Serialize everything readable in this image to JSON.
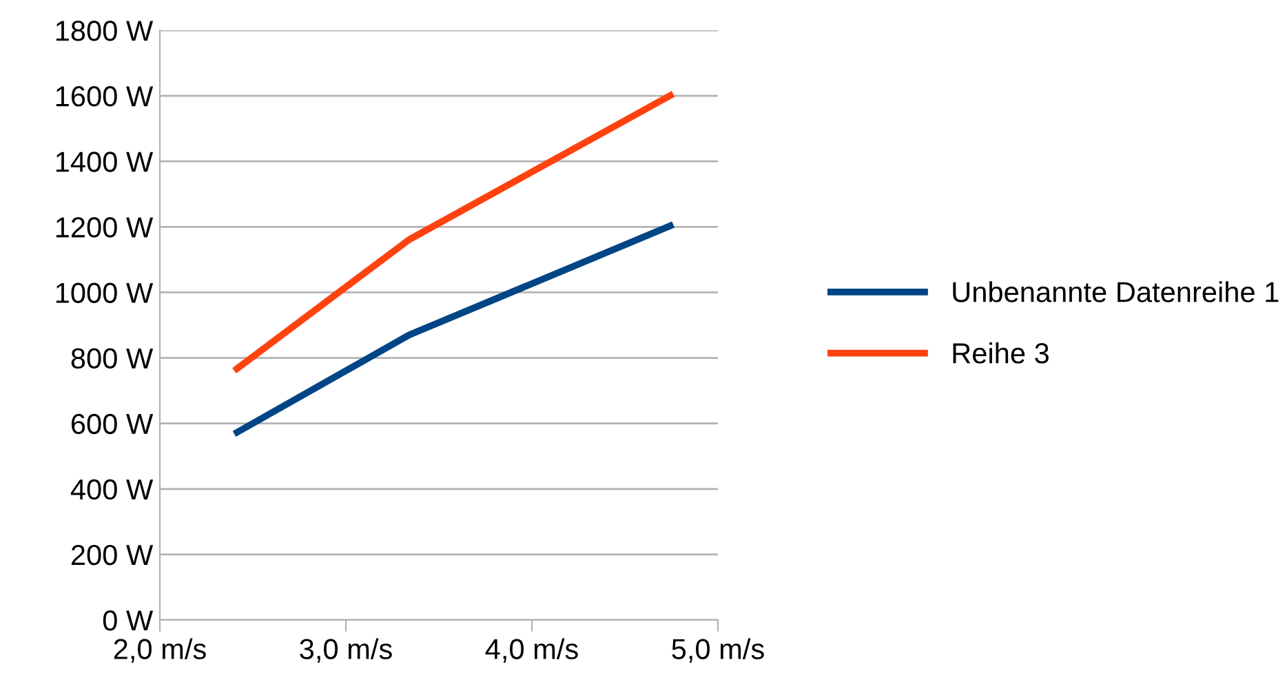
{
  "chart_data": {
    "type": "line",
    "series": [
      {
        "name": "Unbenannte Datenreihe 1",
        "color": "#004586",
        "x": [
          2.4,
          3.34,
          4.76
        ],
        "values": [
          568,
          870,
          1207
        ]
      },
      {
        "name": "Reihe 3",
        "color": "#ff420e",
        "x": [
          2.4,
          3.34,
          4.76
        ],
        "values": [
          761,
          1161,
          1606
        ]
      }
    ],
    "xlim": [
      2,
      5
    ],
    "xticks": [
      {
        "value": 2,
        "label": "2,0 m/s"
      },
      {
        "value": 3,
        "label": "3,0 m/s"
      },
      {
        "value": 4,
        "label": "4,0 m/s"
      },
      {
        "value": 5,
        "label": "5,0 m/s"
      }
    ],
    "ylim": [
      0,
      1800
    ],
    "yticks": [
      {
        "value": 0,
        "label": "0 W"
      },
      {
        "value": 200,
        "label": "200 W"
      },
      {
        "value": 400,
        "label": "400 W"
      },
      {
        "value": 600,
        "label": "600 W"
      },
      {
        "value": 800,
        "label": "800 W"
      },
      {
        "value": 1000,
        "label": "1000 W"
      },
      {
        "value": 1200,
        "label": "1200 W"
      },
      {
        "value": 1400,
        "label": "1400 W"
      },
      {
        "value": 1600,
        "label": "1600 W"
      },
      {
        "value": 1800,
        "label": "1800 W"
      }
    ],
    "grid": "y",
    "legend": "right",
    "marker": "none",
    "line_style": "solid"
  }
}
